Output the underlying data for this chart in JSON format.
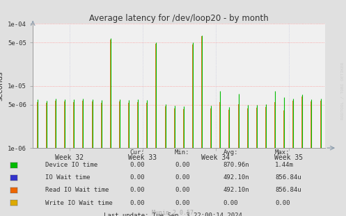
{
  "title": "Average latency for /dev/loop20 - by month",
  "ylabel": "seconds",
  "background_color": "#e0e0e0",
  "plot_bg_color": "#f0f0f0",
  "grid_color_h": "#ff8888",
  "grid_color_v": "#aaaacc",
  "week_labels": [
    "Week 32",
    "Week 33",
    "Week 34",
    "Week 35"
  ],
  "ylim_min": 1e-06,
  "ylim_max": 0.0001,
  "n_points": 32,
  "green_values": [
    6e-06,
    5.8e-06,
    6.2e-06,
    6.1e-06,
    6e-06,
    6.3e-06,
    6.1e-06,
    5.9e-06,
    5.8e-05,
    6.1e-06,
    5.9e-06,
    6e-06,
    5.9e-06,
    5e-05,
    5.1e-06,
    4.8e-06,
    4.7e-06,
    5e-05,
    6.5e-05,
    4.8e-06,
    8.2e-06,
    4.6e-06,
    7.5e-06,
    4.9e-06,
    5e-06,
    5.1e-06,
    8.2e-06,
    6.5e-06,
    6.2e-06,
    7.2e-06,
    6.1e-06,
    6.3e-06
  ],
  "orange_values": [
    5.5e-06,
    5.3e-06,
    5.8e-06,
    5.6e-06,
    5.5e-06,
    5.8e-06,
    5.6e-06,
    5.4e-06,
    5.5e-05,
    5.6e-06,
    5.4e-06,
    5.5e-06,
    5.4e-06,
    4.8e-05,
    4.7e-06,
    4.3e-06,
    4.2e-06,
    4.7e-05,
    6.3e-05,
    4.3e-06,
    5.5e-06,
    4.1e-06,
    5.1e-06,
    4.4e-06,
    4.5e-06,
    4.6e-06,
    5.5e-06,
    4e-06,
    5.7e-06,
    6.7e-06,
    5.6e-06,
    5.8e-06
  ],
  "legend_colors": [
    "#00bb00",
    "#3333cc",
    "#ee6600",
    "#ddaa00"
  ],
  "legend_names": [
    "Device IO time",
    "IO Wait time",
    "Read IO Wait time",
    "Write IO Wait time"
  ],
  "table_headers": [
    "Cur:",
    "Min:",
    "Avg:",
    "Max:"
  ],
  "table_rows": [
    [
      "0.00",
      "0.00",
      "870.96n",
      "1.44m"
    ],
    [
      "0.00",
      "0.00",
      "492.10n",
      "856.84u"
    ],
    [
      "0.00",
      "0.00",
      "492.10n",
      "856.84u"
    ],
    [
      "0.00",
      "0.00",
      "0.00",
      "0.00"
    ]
  ],
  "last_update": "Last update: Tue Sep  3 22:00:14 2024",
  "munin_version": "Munin 2.0.57",
  "watermark": "RRDTOOL / TOBI OETIKER"
}
